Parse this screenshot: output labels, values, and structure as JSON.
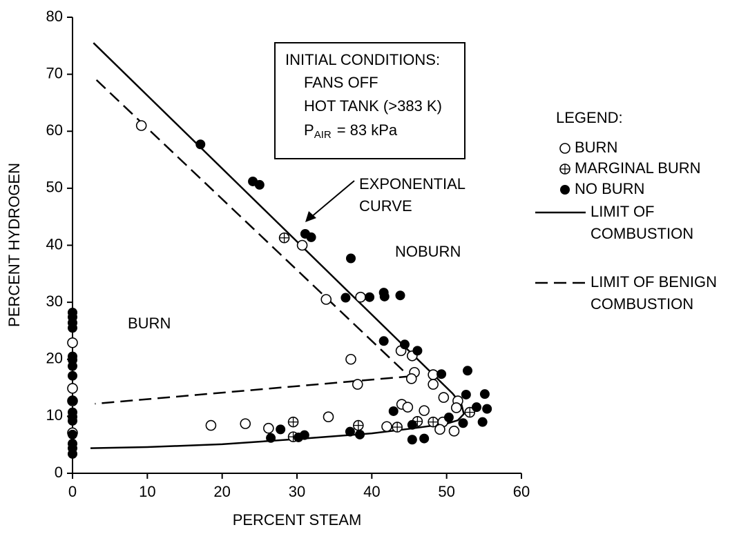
{
  "chart_data": {
    "type": "scatter",
    "xlabel": "PERCENT STEAM",
    "ylabel": "PERCENT HYDROGEN",
    "xlim": [
      0,
      60
    ],
    "xticks": [
      0,
      10,
      20,
      30,
      40,
      50,
      60
    ],
    "ylim": [
      0,
      80
    ],
    "yticks": [
      0,
      10,
      20,
      30,
      40,
      50,
      60,
      70,
      80
    ],
    "color": "#000000",
    "annotations": [
      "BURN",
      "NOBURN"
    ],
    "arrow_label": [
      "EXPONENTIAL",
      "CURVE"
    ],
    "conditions": {
      "title": "INITIAL CONDITIONS:",
      "lines": [
        "FANS OFF",
        "HOT TANK (>383 K)"
      ],
      "pressure": {
        "symbol": "P",
        "subscript": "AIR",
        "text": "= 83 kPa"
      }
    },
    "legend_title": "LEGEND:",
    "series": [
      {
        "name": "BURN",
        "marker": "open",
        "x": [
          9.2,
          30.7,
          33.9,
          38.5,
          37.2,
          38.1,
          18.5,
          23.1,
          26.2,
          34.2,
          42,
          43.9,
          45.4,
          45.7,
          45.3,
          48.2,
          48.2,
          44,
          44.8,
          47,
          49.6,
          49.5,
          49.1,
          51,
          51.5,
          51.3,
          0,
          0,
          0,
          0
        ],
        "y": [
          61,
          40,
          30.5,
          30.9,
          20,
          15.6,
          8.4,
          8.7,
          7.9,
          9.9,
          8.2,
          21.5,
          20.6,
          17.7,
          16.6,
          17.3,
          15.6,
          12.1,
          11.6,
          11,
          13.3,
          9,
          7.7,
          7.4,
          12.7,
          11.5,
          22.9,
          14.9,
          12.7,
          7.1
        ]
      },
      {
        "name": "MARGINAL BURN",
        "marker": "cross",
        "x": [
          28.3,
          29.5,
          29.5,
          38.2,
          43.4,
          46.1,
          48.2,
          53.1
        ],
        "y": [
          41.3,
          9,
          6.4,
          8.4,
          8.1,
          9.1,
          9,
          10.7
        ]
      },
      {
        "name": "NO BURN",
        "marker": "filled",
        "x": [
          17.1,
          24.1,
          25,
          31.1,
          31.9,
          37.2,
          36.5,
          39.7,
          41.6,
          41.7,
          43.8,
          41.6,
          44.4,
          46.1,
          49.3,
          52.8,
          52.6,
          54,
          55.1,
          55.4,
          54.8,
          52.2,
          50.3,
          42.9,
          45.4,
          45.4,
          47,
          26.5,
          27.8,
          30.2,
          31,
          37.1,
          38.4,
          0,
          0,
          0,
          0,
          0,
          0,
          0,
          0,
          0,
          0,
          0,
          0,
          0,
          0,
          0,
          0
        ],
        "y": [
          57.7,
          51.2,
          50.6,
          42,
          41.4,
          37.7,
          30.8,
          30.9,
          31.7,
          31,
          31.2,
          23.2,
          22.6,
          21.5,
          17.4,
          18,
          13.8,
          11.6,
          13.9,
          11.3,
          9,
          8.8,
          9.8,
          10.9,
          8.5,
          5.9,
          6.1,
          6.2,
          7.7,
          6.3,
          6.7,
          7.3,
          6.8,
          28.2,
          27.4,
          26.4,
          25.5,
          20.5,
          19.9,
          18.8,
          17.1,
          12.8,
          10.7,
          9.9,
          9.2,
          6.8,
          5.2,
          4.4,
          3.4
        ]
      }
    ],
    "lines": [
      {
        "name": [
          "LIMIT OF",
          "COMBUSTION"
        ],
        "style": "solid",
        "x": [
          2.8,
          50.8,
          52,
          52.3,
          51.5,
          50,
          45,
          40,
          30,
          20,
          10,
          2.4
        ],
        "y": [
          75.5,
          14,
          12,
          10.4,
          9.3,
          8.7,
          7.8,
          7,
          6,
          5.1,
          4.6,
          4.4
        ]
      },
      {
        "name": [
          "LIMIT OF BENIGN",
          "COMBUSTION"
        ],
        "style": "dashed",
        "x": [
          3.2,
          45,
          3
        ],
        "y": [
          69,
          17,
          12.2
        ]
      }
    ]
  }
}
